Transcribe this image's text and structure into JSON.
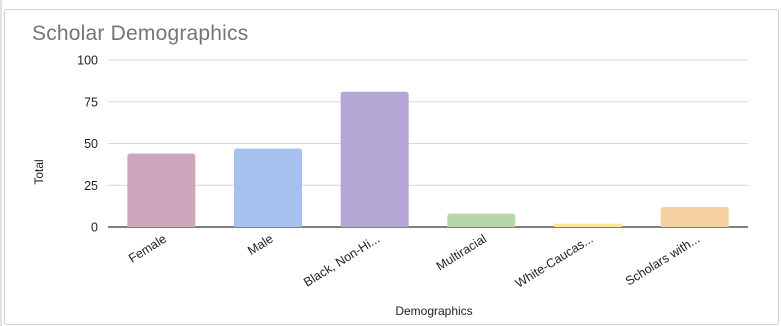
{
  "chart_data": {
    "type": "bar",
    "title": "Scholar Demographics",
    "xlabel": "Demographics",
    "ylabel": "Total",
    "ylim": [
      0,
      100
    ],
    "yticks": [
      0,
      25,
      50,
      75,
      100
    ],
    "grid": true,
    "categories": [
      "Female",
      "Male",
      "Black, Non-Hi...",
      "Multiracial",
      "White-Caucas...",
      "Scholars with..."
    ],
    "values": [
      44,
      47,
      81,
      8,
      2,
      12
    ],
    "colors": [
      "#cda8bd",
      "#a7c1ef",
      "#b4a7d6",
      "#b6d7a8",
      "#ffe599",
      "#f6cfa3"
    ]
  }
}
